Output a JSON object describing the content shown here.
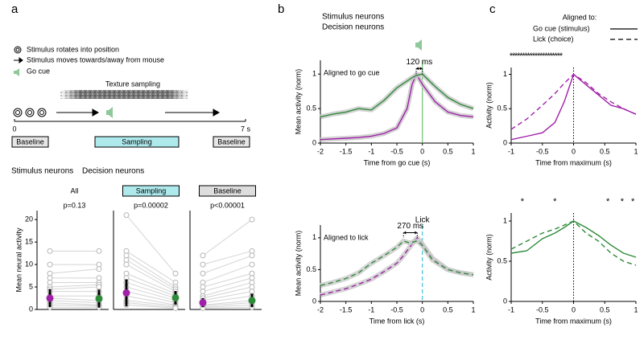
{
  "panels": [
    "a",
    "b",
    "c"
  ],
  "schematic": {
    "legend": [
      "Stimulus rotates into position",
      "Stimulus moves towards/away from mouse",
      "Go cue"
    ],
    "texture": "Texture sampling",
    "axis_start": 0,
    "axis_end": "7 s",
    "epochs": [
      "Baseline",
      "Sampling",
      "Baseline"
    ]
  },
  "panel_a_legend": [
    {
      "text": "Stimulus neurons",
      "color": "#a020a8"
    },
    {
      "text": "Decision neurons",
      "color": "#2e8b3a"
    }
  ],
  "panel_b_legend": [
    {
      "text": "Stimulus neurons",
      "color": "#a020a8"
    },
    {
      "text": "Decision neurons",
      "color": "#2e8b3a"
    }
  ],
  "panel_c_legend": {
    "title": "Aligned to:",
    "entries": [
      {
        "label": "Go cue (stimulus)",
        "dash": false
      },
      {
        "label": "Lick (choice)",
        "dash": true
      }
    ]
  },
  "chart_data": [
    {
      "type": "paired",
      "title": "All",
      "annotation": "p=0.13",
      "ylabel": "Mean neural activity",
      "ylim": [
        0,
        22
      ],
      "yticks": [
        0,
        5,
        10,
        15,
        20
      ],
      "series": [
        {
          "color": "#a020a8",
          "values": [
            13,
            10,
            8,
            7,
            6,
            5,
            4.5,
            4,
            3,
            2.5,
            2,
            1.5,
            1,
            0.5
          ],
          "mean": 2.5,
          "error": 2
        },
        {
          "color": "#2e8b3a",
          "values": [
            13,
            10,
            9,
            7,
            6,
            5.5,
            5,
            4,
            3,
            2,
            1.5,
            1,
            0.8,
            0.5
          ],
          "mean": 2.4,
          "error": 2
        }
      ]
    },
    {
      "type": "paired",
      "title": "Sampling",
      "title_box": "#aee9ec",
      "annotation": "p=0.00002",
      "ylim": [
        0,
        22
      ],
      "series": [
        {
          "color": "#a020a8",
          "values": [
            21,
            13,
            12,
            11,
            10,
            8,
            7,
            6,
            5,
            4,
            3,
            2,
            1.5,
            1
          ],
          "mean": 3.7,
          "error": 3
        },
        {
          "color": "#2e8b3a",
          "values": [
            8,
            6,
            5,
            4.5,
            4,
            3.5,
            3,
            2.5,
            2,
            1.5,
            1,
            0.8,
            0.5,
            0.3
          ],
          "mean": 2.6,
          "error": 1.5
        }
      ]
    },
    {
      "type": "paired",
      "title": "Baseline",
      "title_box": "#dddddd",
      "annotation": "p<0.00001",
      "ylim": [
        0,
        22
      ],
      "series": [
        {
          "color": "#a020a8",
          "values": [
            12,
            10,
            8,
            6,
            5,
            4,
            3,
            2.5,
            2,
            1.5,
            1,
            0.8,
            0.5,
            0.3
          ],
          "mean": 1.5,
          "error": 1
        },
        {
          "color": "#2e8b3a",
          "values": [
            20,
            13,
            12,
            10,
            8,
            7,
            6,
            5,
            4,
            3,
            2,
            1.5,
            1,
            0.5
          ],
          "mean": 2.0,
          "error": 1.5
        }
      ]
    },
    {
      "type": "line",
      "title": "Aligned to go cue",
      "xlabel": "Time from go cue (s)",
      "ylabel": "Mean activity (norm)",
      "xlim": [
        -2,
        1
      ],
      "xticks": [
        -2,
        -1.5,
        -1,
        -0.5,
        0,
        0.5,
        1
      ],
      "ylim": [
        0,
        1.2
      ],
      "yticks": [
        0,
        0.5,
        1
      ],
      "vline": {
        "x": 0,
        "color": "#7cc47f",
        "dash": false
      },
      "annotation": {
        "text": "120 ms",
        "x": [
          -0.12,
          0
        ]
      },
      "x": [
        -2,
        -1.75,
        -1.5,
        -1.25,
        -1,
        -0.75,
        -0.5,
        -0.3,
        -0.2,
        -0.12,
        0,
        0.25,
        0.5,
        0.75,
        1
      ],
      "series": [
        {
          "color": "#a020a8",
          "dash": false,
          "values": [
            0.05,
            0.06,
            0.07,
            0.08,
            0.1,
            0.14,
            0.22,
            0.5,
            0.85,
            1.0,
            0.85,
            0.6,
            0.45,
            0.4,
            0.38
          ]
        },
        {
          "color": "#2e8b3a",
          "dash": false,
          "values": [
            0.38,
            0.42,
            0.45,
            0.5,
            0.48,
            0.62,
            0.8,
            0.9,
            0.95,
            0.98,
            1.0,
            0.82,
            0.66,
            0.56,
            0.5
          ]
        }
      ]
    },
    {
      "type": "line",
      "title": "Aligned to lick",
      "xlabel": "Time from lick (s)",
      "ylabel": "Mean activity (norm)",
      "xlim": [
        -2,
        1
      ],
      "xticks": [
        -2,
        -1.5,
        -1,
        -0.5,
        0,
        0.5,
        1
      ],
      "ylim": [
        0,
        1.2
      ],
      "yticks": [
        0,
        0.5,
        1
      ],
      "vline": {
        "x": 0,
        "color": "#4fc3d9",
        "dash": true,
        "label": "Lick"
      },
      "annotation": {
        "text": "270 ms",
        "x": [
          -0.37,
          -0.1
        ]
      },
      "x": [
        -2,
        -1.75,
        -1.5,
        -1.25,
        -1,
        -0.75,
        -0.5,
        -0.37,
        -0.25,
        -0.1,
        0,
        0.2,
        0.5,
        0.75,
        1
      ],
      "series": [
        {
          "color": "#a020a8",
          "dash": true,
          "values": [
            0.1,
            0.15,
            0.2,
            0.27,
            0.35,
            0.47,
            0.6,
            0.72,
            0.85,
            1.0,
            0.9,
            0.68,
            0.5,
            0.45,
            0.42
          ]
        },
        {
          "color": "#2e8b3a",
          "dash": true,
          "values": [
            0.25,
            0.3,
            0.36,
            0.45,
            0.6,
            0.72,
            0.85,
            0.95,
            0.92,
            0.95,
            0.88,
            0.65,
            0.5,
            0.45,
            0.42
          ]
        }
      ]
    },
    {
      "type": "line",
      "xlabel": "Time from maximum (s)",
      "ylabel": "Activity (norm)",
      "xlim": [
        -1,
        1
      ],
      "xticks": [
        -1,
        -0.5,
        0,
        0.5,
        1
      ],
      "ylim": [
        0,
        1.1
      ],
      "yticks": [
        0,
        0.5,
        1
      ],
      "vline": {
        "x": 0,
        "color": "#000000",
        "dash": true
      },
      "stars": {
        "label": "*",
        "x": [
          -1,
          -0.96,
          -0.92,
          -0.88,
          -0.84,
          -0.8,
          -0.76,
          -0.72,
          -0.68,
          -0.64,
          -0.6,
          -0.56,
          -0.52,
          -0.48,
          -0.44,
          -0.4,
          -0.36,
          -0.32,
          -0.28,
          -0.24,
          -0.2
        ]
      },
      "x": [
        -1,
        -0.75,
        -0.5,
        -0.3,
        -0.15,
        0,
        0.2,
        0.4,
        0.6,
        0.8,
        1
      ],
      "series": [
        {
          "color": "#a020a8",
          "dash": false,
          "values": [
            0.05,
            0.1,
            0.15,
            0.3,
            0.6,
            1.0,
            0.85,
            0.7,
            0.55,
            0.5,
            0.42
          ]
        },
        {
          "color": "#a020a8",
          "dash": true,
          "values": [
            0.2,
            0.35,
            0.55,
            0.72,
            0.87,
            1.0,
            0.88,
            0.72,
            0.6,
            0.5,
            0.42
          ]
        }
      ]
    },
    {
      "type": "line",
      "xlabel": "Time from maximum (s)",
      "ylabel": "Activity (norm)",
      "xlim": [
        -1,
        1
      ],
      "xticks": [
        -1,
        -0.5,
        0,
        0.5,
        1
      ],
      "ylim": [
        0,
        1.1
      ],
      "yticks": [
        0,
        0.5,
        1
      ],
      "vline": {
        "x": 0,
        "color": "#000000",
        "dash": true
      },
      "stars": {
        "label": "*",
        "x": [
          -0.82,
          -0.3,
          0.55,
          0.78,
          0.95
        ]
      },
      "x": [
        -1,
        -0.75,
        -0.5,
        -0.3,
        -0.15,
        0,
        0.2,
        0.4,
        0.6,
        0.8,
        1
      ],
      "series": [
        {
          "color": "#2e8b3a",
          "dash": false,
          "values": [
            0.6,
            0.63,
            0.78,
            0.85,
            0.92,
            1.0,
            0.92,
            0.82,
            0.7,
            0.6,
            0.55
          ]
        },
        {
          "color": "#2e8b3a",
          "dash": true,
          "values": [
            0.65,
            0.75,
            0.85,
            0.9,
            0.95,
            1.0,
            0.85,
            0.75,
            0.6,
            0.5,
            0.45
          ]
        }
      ]
    }
  ]
}
